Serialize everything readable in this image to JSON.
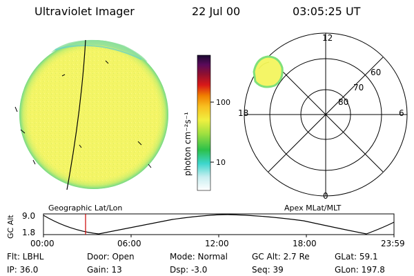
{
  "header": {
    "title": "Ultraviolet Imager",
    "date": "22 Jul 00",
    "time": "03:05:25 UT"
  },
  "colorbar": {
    "label": "photon cm⁻²s⁻¹",
    "ticks": [
      "100",
      "10"
    ]
  },
  "polar_plot": {
    "mlt_labels": [
      "12",
      "18",
      "6",
      "0"
    ],
    "lat_labels": [
      "60",
      "70",
      "80"
    ]
  },
  "timeline": {
    "left_title": "Geographic Lat/Lon",
    "right_title": "Apex MLat/MLT",
    "ylabel": "GC Alt",
    "ymax_label": "9.0",
    "ymin_label": "1.8",
    "xticks": [
      "00:00",
      "06:00",
      "12:00",
      "18:00",
      "23:59"
    ]
  },
  "info": {
    "flt": "Flt: LBHL",
    "door": "Door: Open",
    "mode": "Mode: Normal",
    "gcalt": "GC Alt: 2.7 Re",
    "glat": "GLat:  59.1",
    "ip": "IP: 36.0",
    "gain": "Gain: 13",
    "dsp": "Dsp:   -3.0",
    "seq": "Seq: 39",
    "glon": "GLon: 197.8"
  },
  "colors": {
    "disk_yellow": "#f2f560",
    "disk_green": "#8fe05a",
    "disk_cyan": "#40d8d8",
    "current_time_marker": "#cc0000"
  }
}
